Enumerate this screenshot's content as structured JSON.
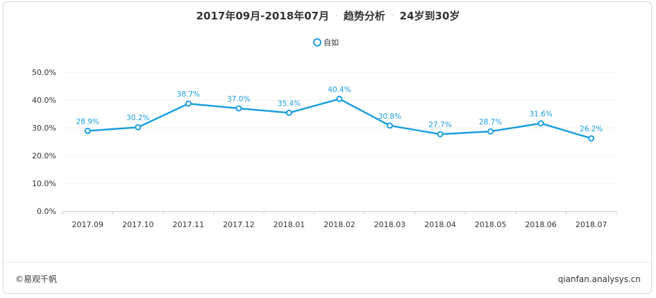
{
  "header": {
    "range": "2017年09月-2018年07月",
    "section": "趋势分析",
    "group": "24岁到30岁"
  },
  "footer": {
    "source": "©易观千帆",
    "site": "qianfan.analysys.cn"
  },
  "colors": {
    "series": "#1a9fe0",
    "label": "#1a9fe0",
    "axis": "#333333",
    "grid": "#f0f0f0"
  },
  "chart_data": {
    "type": "line",
    "title": "2017年09月-2018年07月 · 趋势分析 · 24岁到30岁",
    "categories": [
      "2017.09",
      "2017.10",
      "2017.11",
      "2017.12",
      "2018.01",
      "2018.02",
      "2018.03",
      "2018.04",
      "2018.05",
      "2018.06",
      "2018.07"
    ],
    "series": [
      {
        "name": "自如",
        "values": [
          28.9,
          30.2,
          38.7,
          37.0,
          35.4,
          40.4,
          30.8,
          27.7,
          28.7,
          31.6,
          26.2
        ],
        "labels": [
          "28.9%",
          "30.2%",
          "38.7%",
          "37.0%",
          "35.4%",
          "40.4%",
          "30.8%",
          "27.7%",
          "28.7%",
          "31.6%",
          "26.2%"
        ]
      }
    ],
    "y_ticks": [
      "0.0%",
      "10.0%",
      "20.0%",
      "30.0%",
      "40.0%",
      "50.0%"
    ],
    "ylim": [
      0,
      50
    ],
    "legend_position": "top-center",
    "grid": true
  }
}
